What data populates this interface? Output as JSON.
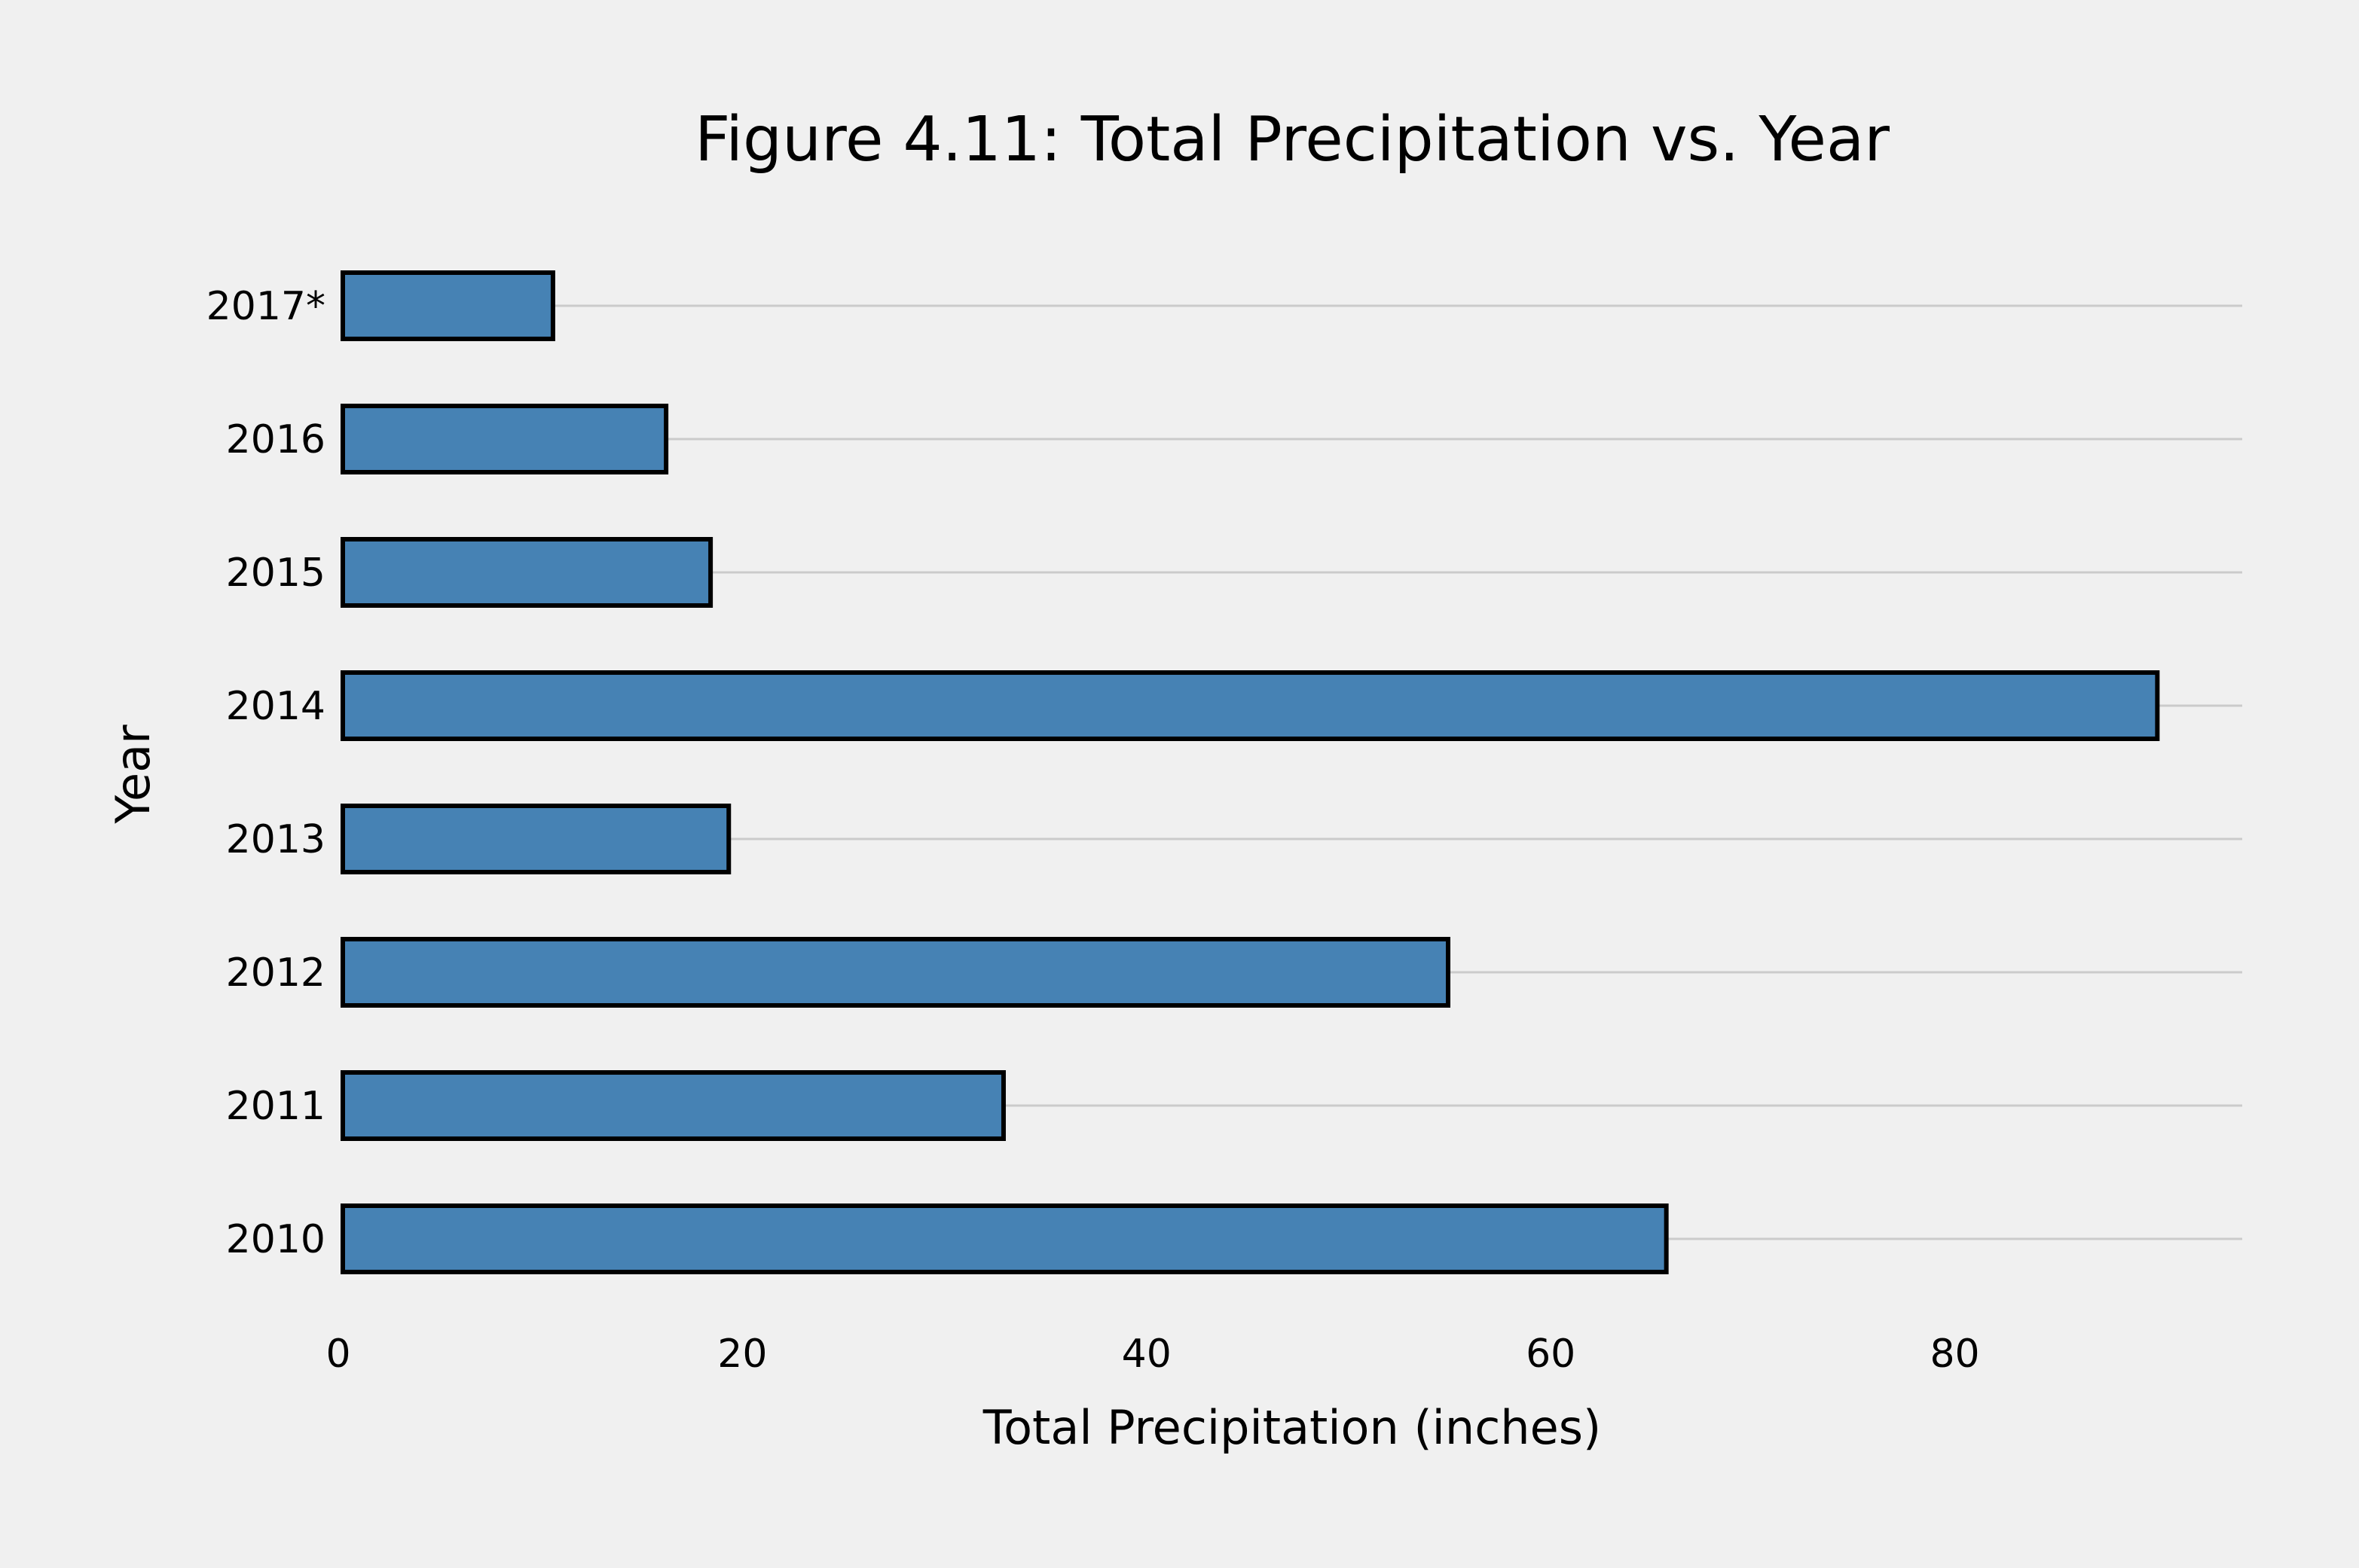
{
  "chart_data": {
    "type": "bar",
    "orientation": "horizontal",
    "title": "Figure 4.11: Total Precipitation vs. Year",
    "xlabel": "Total Precipitation (inches)",
    "ylabel": "Year",
    "categories": [
      "2010",
      "2011",
      "2012",
      "2013",
      "2014",
      "2015",
      "2016",
      "2017*"
    ],
    "values": [
      65.5,
      32.7,
      54.7,
      19.1,
      89.8,
      18.2,
      16.0,
      10.4
    ],
    "xlim": [
      0,
      94
    ],
    "xticks": [
      0,
      20,
      40,
      60,
      80
    ],
    "xtick_labels": [
      "0",
      "20",
      "40",
      "60",
      "80"
    ],
    "grid": {
      "horizontal": true,
      "vertical": false
    },
    "colors": {
      "bar_fill": "#4682b4",
      "bar_edge": "#000000",
      "grid": "#cbcbcb",
      "background": "#f0f0f0"
    }
  }
}
